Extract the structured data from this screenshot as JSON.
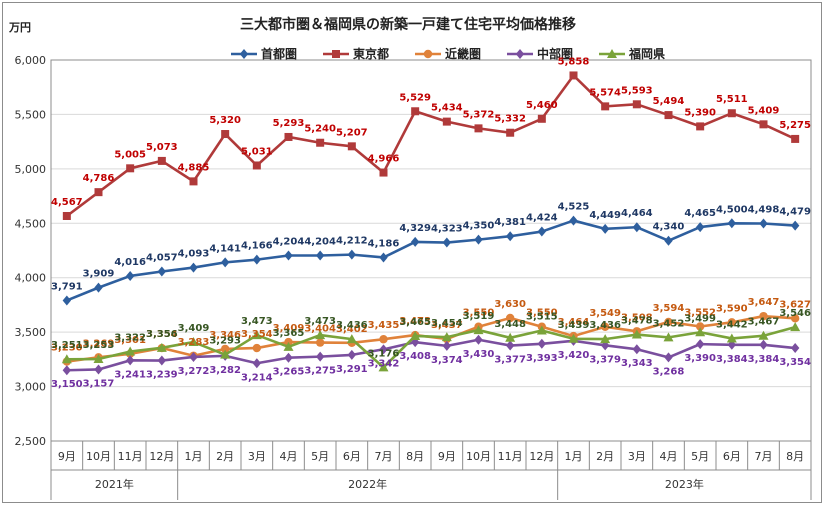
{
  "chart_data": {
    "type": "line",
    "title": "三大都市圏＆福岡県の新築一戸建て住宅平均価格推移",
    "unit_label": "万円",
    "ylim": [
      2500,
      6000
    ],
    "y_ticks": [
      "2,500",
      "3,000",
      "3,500",
      "4,000",
      "4,500",
      "5,000",
      "5,500",
      "6,000"
    ],
    "y_tick_values": [
      2500,
      3000,
      3500,
      4000,
      4500,
      5000,
      5500,
      6000
    ],
    "grid": true,
    "legend_position": "top",
    "categories": [
      "9月",
      "10月",
      "11月",
      "12月",
      "1月",
      "2月",
      "3月",
      "4月",
      "5月",
      "6月",
      "7月",
      "8月",
      "9月",
      "10月",
      "11月",
      "12月",
      "1月",
      "2月",
      "3月",
      "4月",
      "5月",
      "6月",
      "7月",
      "8月"
    ],
    "year_groups": [
      {
        "label": "2021年",
        "count": 4
      },
      {
        "label": "2022年",
        "count": 12
      },
      {
        "label": "2023年",
        "count": 8
      }
    ],
    "series": [
      {
        "name": "首都圏",
        "color": "#2e5f9e",
        "marker": "diamond",
        "label_color": "#1f3864",
        "label_pos": "above",
        "values": [
          3791,
          3909,
          4016,
          4057,
          4093,
          4141,
          4166,
          4204,
          4204,
          4212,
          4186,
          4329,
          4323,
          4350,
          4381,
          4424,
          4525,
          4449,
          4464,
          4340,
          4465,
          4500,
          4498,
          4479
        ],
        "labels": [
          "3,791",
          "3,909",
          "4,016",
          "4,057",
          "4,093",
          "4,141",
          "4,166",
          "4,204",
          "4,204",
          "4,212",
          "4,186",
          "4,329",
          "4,323",
          "4,350",
          "4,381",
          "4,424",
          "4,525",
          "4,449",
          "4,464",
          "4,340",
          "4,465",
          "4,500",
          "4,498",
          "4,479"
        ]
      },
      {
        "name": "東京都",
        "color": "#b03a3a",
        "marker": "square",
        "label_color": "#c00000",
        "label_pos": "above",
        "values": [
          4567,
          4786,
          5005,
          5073,
          4885,
          5320,
          5031,
          5293,
          5240,
          5207,
          4966,
          5529,
          5434,
          5372,
          5332,
          5460,
          5858,
          5574,
          5593,
          5494,
          5390,
          5511,
          5409,
          5275
        ],
        "labels": [
          "4,567",
          "4,786",
          "5,005",
          "5,073",
          "4,885",
          "5,320",
          "5,031",
          "5,293",
          "5,240",
          "5,207",
          "4,966",
          "5,529",
          "5,434",
          "5,372",
          "5,332",
          "5,460",
          "5,858",
          "5,574",
          "5,593",
          "5,494",
          "5,390",
          "5,511",
          "5,409",
          "5,275"
        ]
      },
      {
        "name": "近畿圏",
        "color": "#e0823a",
        "marker": "circle",
        "label_color": "#c55a11",
        "label_pos": "above",
        "values": [
          3230,
          3269,
          3301,
          3354,
          3283,
          3346,
          3354,
          3409,
          3404,
          3402,
          3435,
          3473,
          3437,
          3550,
          3630,
          3550,
          3464,
          3549,
          3508,
          3594,
          3552,
          3590,
          3647,
          3627
        ],
        "labels": [
          "3,230",
          "3,269",
          "3,301",
          "3,354",
          "3,283",
          "3,346",
          "3,354",
          "3,409",
          "3,404",
          "3,402",
          "3,435",
          "3,473",
          "3,437",
          "3,550",
          "3,630",
          "3,550",
          "3,464",
          "3,549",
          "3,508",
          "3,594",
          "3,552",
          "3,590",
          "3,647",
          "3,627"
        ]
      },
      {
        "name": "中部圏",
        "color": "#7a4f9e",
        "marker": "diamond",
        "label_color": "#7030a0",
        "label_pos": "below",
        "values": [
          3150,
          3157,
          3241,
          3239,
          3272,
          3282,
          3214,
          3265,
          3275,
          3291,
          3342,
          3408,
          3374,
          3430,
          3377,
          3393,
          3420,
          3379,
          3343,
          3268,
          3390,
          3384,
          3384,
          3354
        ],
        "labels": [
          "3,150",
          "3,157",
          "3,241",
          "3,239",
          "3,272",
          "3,282",
          "3,214",
          "3,265",
          "3,275",
          "3,291",
          "3,342",
          "3,408",
          "3,374",
          "3,430",
          "3,377",
          "3,393",
          "3,420",
          "3,379",
          "3,343",
          "3,268",
          "3,390",
          "3,384",
          "3,384",
          "3,354"
        ]
      },
      {
        "name": "福岡県",
        "color": "#7aa33a",
        "marker": "triangle",
        "label_color": "#375623",
        "label_pos": "above",
        "values": [
          3251,
          3253,
          3322,
          3356,
          3409,
          3293,
          3473,
          3365,
          3473,
          3436,
          3176,
          3465,
          3454,
          3519,
          3448,
          3515,
          3439,
          3436,
          3478,
          3452,
          3499,
          3442,
          3467,
          3546
        ],
        "labels": [
          "3,251",
          "3,253",
          "3,322",
          "3,356",
          "3,409",
          "3,293",
          "3,473",
          "3,365",
          "3,473",
          "3,436",
          "3,176",
          "3,465",
          "3,454",
          "3,519",
          "3,448",
          "3,515",
          "3,439",
          "3,436",
          "3,478",
          "3,452",
          "3,499",
          "3,442",
          "3,467",
          "3,546"
        ]
      }
    ]
  }
}
